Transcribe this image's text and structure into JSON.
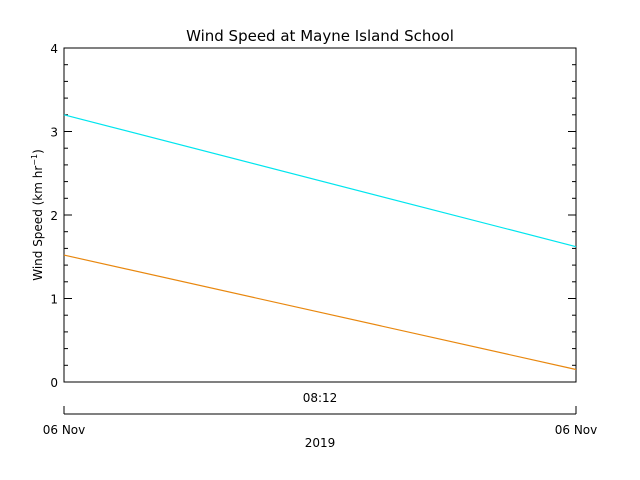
{
  "chart_data": {
    "type": "line",
    "title": "Wind Speed at Mayne Island School",
    "ylabel_main": "Wind Speed (km hr",
    "ylabel_exp": "−1",
    "ylabel_close": ")",
    "ylim": [
      0,
      4
    ],
    "yticks": [
      0,
      1,
      2,
      3,
      4
    ],
    "x_mid_label": "08:12",
    "x_left_label": "06 Nov",
    "x_right_label": "06 Nov",
    "x_year_label": "2019",
    "grid": false,
    "legend": "none",
    "series": [
      {
        "color": "#00e5ee",
        "x": [
          0,
          1
        ],
        "y": [
          3.2,
          1.62
        ]
      },
      {
        "color": "#e8870e",
        "x": [
          0,
          1
        ],
        "y": [
          1.52,
          0.15
        ]
      }
    ]
  }
}
